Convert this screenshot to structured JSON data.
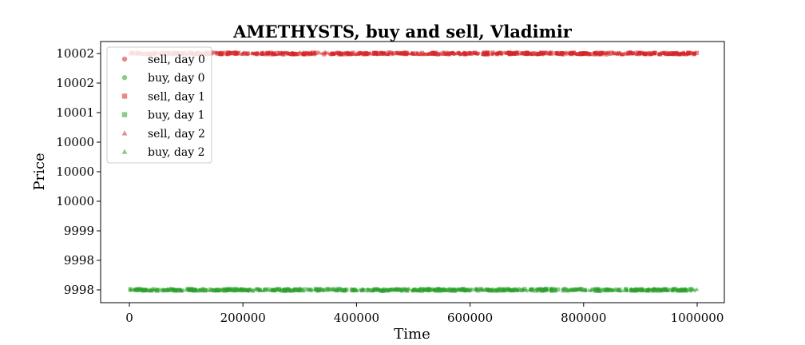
{
  "chart_data": {
    "type": "scatter",
    "title": "AMETHYSTS, buy and sell, Vladimir",
    "xlabel": "Time",
    "ylabel": "Price",
    "xlim": [
      -50000,
      1050000
    ],
    "ylim": [
      9997.7,
      10002.3
    ],
    "x_ticks": [
      0,
      200000,
      400000,
      600000,
      800000,
      1000000
    ],
    "x_tick_labels": [
      "0",
      "200000",
      "400000",
      "600000",
      "800000",
      "1000000"
    ],
    "y_ticks": [
      9998,
      9998.5,
      9999,
      9999.5,
      10000,
      10000.5,
      10001,
      10001.5,
      10002
    ],
    "y_tick_labels": [
      "9998",
      "9998",
      "9999",
      "10000",
      "10000",
      "10000",
      "10001",
      "10002",
      "10002"
    ],
    "legend_position": "top-left",
    "grid": false,
    "series": [
      {
        "name": "sell, day 0",
        "marker": "circle",
        "color": "#d62728",
        "price": 10002,
        "x_range": [
          0,
          999900
        ]
      },
      {
        "name": "buy, day 0",
        "marker": "circle",
        "color": "#2ca02c",
        "price": 9998,
        "x_range": [
          0,
          999900
        ]
      },
      {
        "name": "sell, day 1",
        "marker": "square",
        "color": "#d62728",
        "price": 10002,
        "x_range": [
          0,
          999900
        ]
      },
      {
        "name": "buy, day 1",
        "marker": "square",
        "color": "#2ca02c",
        "price": 9998,
        "x_range": [
          0,
          999900
        ]
      },
      {
        "name": "sell, day 2",
        "marker": "triangle",
        "color": "#d62728",
        "price": 10002,
        "x_range": [
          0,
          999900
        ]
      },
      {
        "name": "buy, day 2",
        "marker": "triangle",
        "color": "#2ca02c",
        "price": 9998,
        "x_range": [
          0,
          999900
        ]
      }
    ]
  }
}
